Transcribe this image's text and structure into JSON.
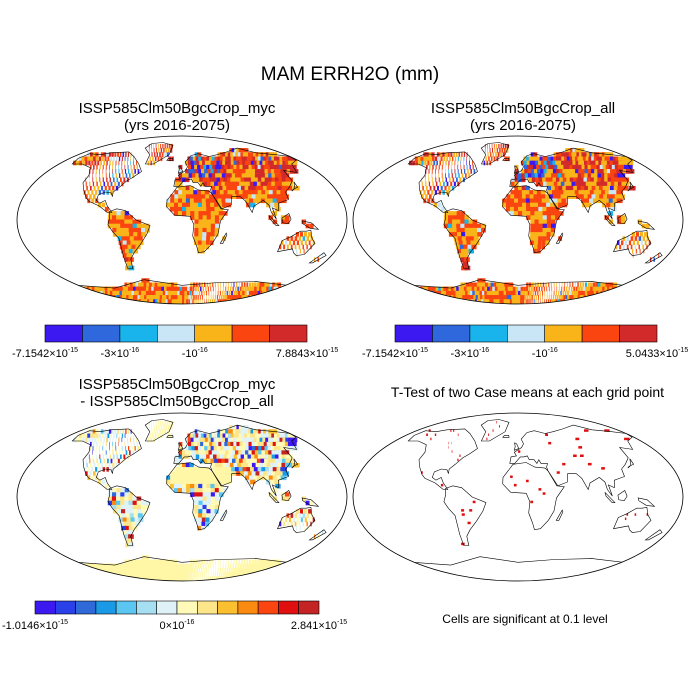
{
  "main_title": "MAM ERRH2O (mm)",
  "panels": [
    {
      "id": "p1",
      "title_line1": "ISSP585Clm50BgcCrop_myc",
      "title_line2": "(yrs 2016-2075)",
      "type": "field",
      "colorbar": {
        "colors": [
          "#3b19f0",
          "#2f67dc",
          "#19b4ec",
          "#c8e6f6",
          "#f9b41a",
          "#fa4510",
          "#d22a2a"
        ],
        "labels": [
          "-7.1542×10-15",
          "-3×10-16",
          "-10-16",
          "7.8843×10-15"
        ],
        "label_values": [
          {
            "mantissa": "-7.1542×10",
            "exp": "-15"
          },
          {
            "mantissa": "-3×10",
            "exp": "-16"
          },
          {
            "mantissa": "-10",
            "exp": "-16"
          },
          {
            "mantissa": "7.8843×10",
            "exp": "-15"
          }
        ]
      }
    },
    {
      "id": "p2",
      "title_line1": "ISSP585Clm50BgcCrop_all",
      "title_line2": "(yrs 2016-2075)",
      "type": "field",
      "colorbar": {
        "colors": [
          "#3b19f0",
          "#2f67dc",
          "#19b4ec",
          "#c8e6f6",
          "#f9b41a",
          "#fa4510",
          "#d22a2a"
        ],
        "labels": [
          "-7.1542×10-15",
          "-3×10-16",
          "-10-16",
          "5.0433×10-15"
        ],
        "label_values": [
          {
            "mantissa": "-7.1542×10",
            "exp": "-15"
          },
          {
            "mantissa": "-3×10",
            "exp": "-16"
          },
          {
            "mantissa": "-10",
            "exp": "-16"
          },
          {
            "mantissa": "5.0433×10",
            "exp": "-15"
          }
        ]
      }
    },
    {
      "id": "p3",
      "title_line1": "ISSP585Clm50BgcCrop_myc",
      "title_line2": "- ISSP585Clm50BgcCrop_all",
      "type": "difference",
      "colorbar": {
        "colors": [
          "#3b19f0",
          "#2a40e8",
          "#2f6ad8",
          "#1a9ae6",
          "#5bc6f2",
          "#a6def2",
          "#dff2f8",
          "#fffab8",
          "#fde68a",
          "#fac030",
          "#fa8a10",
          "#fa4510",
          "#e01010",
          "#c42424"
        ],
        "labels": [
          "-1.0146×10-15",
          "0×10-16",
          "2.841×10-15"
        ],
        "label_values": [
          {
            "mantissa": "-1.0146×10",
            "exp": "-15"
          },
          {
            "mantissa": "0×10",
            "exp": "-16"
          },
          {
            "mantissa": "2.841×10",
            "exp": "-15"
          }
        ]
      }
    },
    {
      "id": "p4",
      "title_line1": "T-Test of two Case means at each grid point",
      "title_line2": "",
      "type": "ttest",
      "note": "Cells are significant at 0.1 level"
    }
  ],
  "colors": {
    "land_mask": "#fff7a6",
    "significant_cell": "#e01010",
    "coastline": "#000000"
  }
}
